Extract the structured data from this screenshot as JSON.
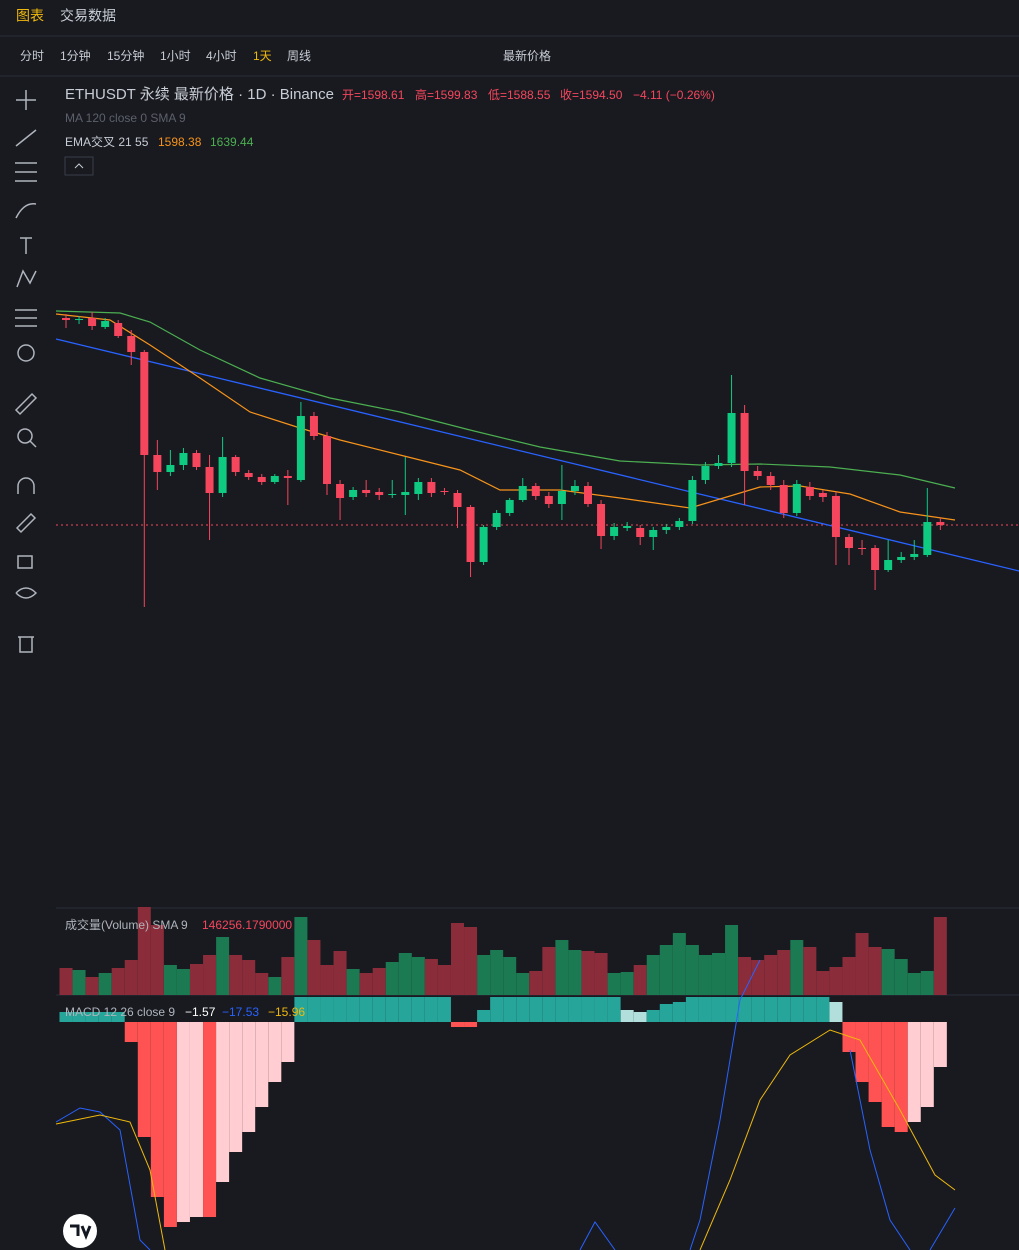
{
  "tabs": [
    "图表",
    "交易数据"
  ],
  "toolbar": [
    "分时",
    "1分钟",
    "15分钟",
    "1小时",
    "4小时",
    "1天",
    "周线",
    "最新价格"
  ],
  "legend": {
    "symbol": "ETHUSDT 永续 最新价格 · 1D · Binance",
    "open": "开=1598.61",
    "high": "高=1599.83",
    "low": "低=1588.55",
    "close": "收=1594.50",
    "change": "−4.11 (−0.26%)",
    "ma": "MA 120 close 0 SMA 9",
    "ema": "EMA交叉 21 55",
    "ema_fast": "1598.38",
    "ema_slow": "1639.44"
  },
  "volume": {
    "label": "成交量(Volume) SMA 9",
    "value": "146256.1790000"
  },
  "macd": {
    "label": "MACD 12 26 close 9",
    "hist": "−1.57",
    "macd": "−17.53",
    "signal": "−15.96"
  }
}
